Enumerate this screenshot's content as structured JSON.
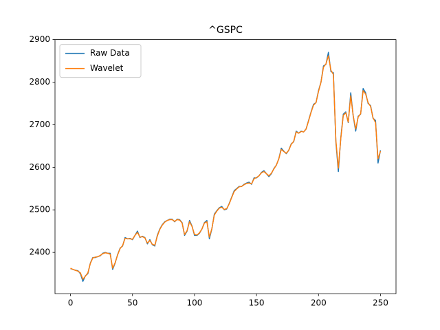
{
  "chart_data": {
    "type": "line",
    "title": "^GSPC",
    "x": [
      0,
      2,
      4,
      6,
      8,
      10,
      12,
      14,
      16,
      18,
      20,
      22,
      24,
      26,
      28,
      30,
      32,
      34,
      36,
      38,
      40,
      42,
      44,
      46,
      48,
      50,
      52,
      54,
      56,
      58,
      60,
      62,
      64,
      66,
      68,
      70,
      72,
      74,
      76,
      78,
      80,
      82,
      84,
      86,
      88,
      90,
      92,
      94,
      96,
      98,
      100,
      102,
      104,
      106,
      108,
      110,
      112,
      114,
      116,
      118,
      120,
      122,
      124,
      126,
      128,
      130,
      132,
      134,
      136,
      138,
      140,
      142,
      144,
      146,
      148,
      150,
      152,
      154,
      156,
      158,
      160,
      162,
      164,
      166,
      168,
      170,
      172,
      174,
      176,
      178,
      180,
      182,
      184,
      186,
      188,
      190,
      192,
      194,
      196,
      198,
      200,
      202,
      204,
      206,
      208,
      210,
      212,
      214,
      216,
      218,
      220,
      222,
      224,
      226,
      228,
      230,
      232,
      234,
      236,
      238,
      240,
      242,
      244,
      246,
      248,
      250
    ],
    "series": [
      {
        "name": "Raw Data",
        "color": "#1f77b4",
        "values": [
          2362,
          2360,
          2358,
          2357,
          2350,
          2332,
          2345,
          2350,
          2375,
          2388,
          2388,
          2390,
          2392,
          2398,
          2400,
          2398,
          2398,
          2360,
          2375,
          2395,
          2410,
          2415,
          2435,
          2432,
          2433,
          2430,
          2440,
          2450,
          2435,
          2438,
          2435,
          2420,
          2430,
          2418,
          2415,
          2440,
          2455,
          2465,
          2472,
          2475,
          2478,
          2478,
          2472,
          2478,
          2477,
          2470,
          2440,
          2450,
          2475,
          2462,
          2440,
          2440,
          2445,
          2455,
          2470,
          2475,
          2432,
          2455,
          2490,
          2498,
          2505,
          2508,
          2500,
          2502,
          2515,
          2530,
          2545,
          2550,
          2555,
          2555,
          2560,
          2563,
          2565,
          2560,
          2575,
          2575,
          2580,
          2588,
          2592,
          2585,
          2578,
          2585,
          2597,
          2605,
          2620,
          2645,
          2638,
          2632,
          2640,
          2655,
          2660,
          2685,
          2680,
          2685,
          2683,
          2690,
          2710,
          2730,
          2748,
          2752,
          2780,
          2800,
          2838,
          2842,
          2870,
          2825,
          2822,
          2660,
          2590,
          2670,
          2725,
          2730,
          2705,
          2775,
          2720,
          2685,
          2720,
          2725,
          2785,
          2775,
          2750,
          2745,
          2715,
          2710,
          2610,
          2640
        ]
      },
      {
        "name": "Wavelet",
        "color": "#ff7f0e",
        "values": [
          2363,
          2360,
          2358,
          2356,
          2352,
          2337,
          2344,
          2352,
          2374,
          2387,
          2389,
          2390,
          2393,
          2397,
          2399,
          2398,
          2396,
          2363,
          2376,
          2394,
          2409,
          2416,
          2433,
          2432,
          2432,
          2431,
          2440,
          2447,
          2436,
          2437,
          2434,
          2422,
          2428,
          2419,
          2417,
          2438,
          2454,
          2464,
          2471,
          2475,
          2477,
          2477,
          2473,
          2477,
          2476,
          2469,
          2442,
          2451,
          2472,
          2461,
          2442,
          2441,
          2446,
          2455,
          2469,
          2472,
          2436,
          2456,
          2488,
          2497,
          2504,
          2506,
          2501,
          2503,
          2514,
          2529,
          2543,
          2549,
          2554,
          2555,
          2559,
          2562,
          2563,
          2561,
          2573,
          2576,
          2580,
          2587,
          2590,
          2585,
          2580,
          2586,
          2596,
          2605,
          2620,
          2642,
          2637,
          2633,
          2640,
          2654,
          2661,
          2683,
          2680,
          2684,
          2683,
          2690,
          2709,
          2729,
          2746,
          2752,
          2778,
          2800,
          2835,
          2843,
          2862,
          2828,
          2818,
          2664,
          2598,
          2668,
          2722,
          2728,
          2706,
          2768,
          2721,
          2690,
          2718,
          2726,
          2780,
          2772,
          2752,
          2743,
          2716,
          2705,
          2620,
          2638
        ]
      }
    ],
    "xlim": [
      -12.5,
      262.5
    ],
    "ylim": [
      2303,
      2900
    ],
    "xticks": [
      0,
      50,
      100,
      150,
      200,
      250
    ],
    "yticks": [
      2400,
      2500,
      2600,
      2700,
      2800,
      2900
    ],
    "legend": "upper left"
  }
}
